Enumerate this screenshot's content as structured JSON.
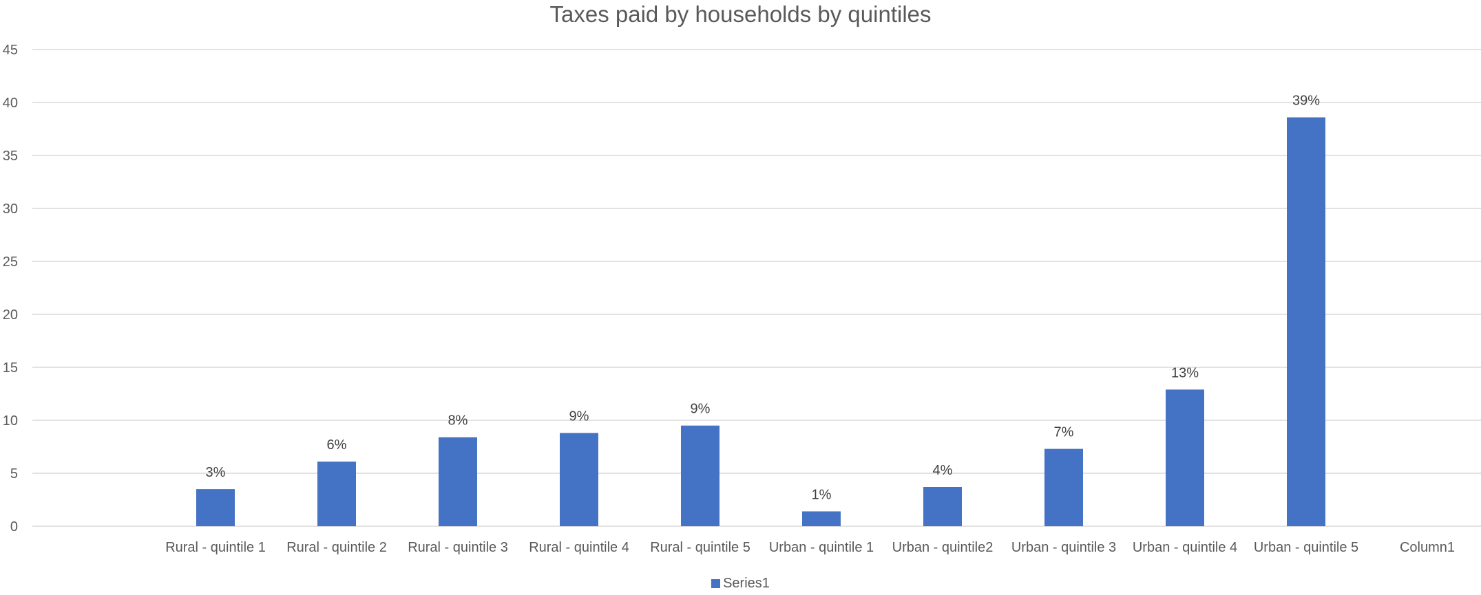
{
  "chart_data": {
    "type": "bar",
    "title": "Taxes paid by households by quintiles",
    "categories": [
      "Rural - quintile 1",
      "Rural - quintile 2",
      "Rural - quintile 3",
      "Rural - quintile 4",
      "Rural - quintile 5",
      "Urban - quintile 1",
      "Urban - quintile2",
      "Urban - quintile 3",
      "Urban - quintile 4",
      "Urban - quintile 5",
      "Column1"
    ],
    "series": [
      {
        "name": "Series1",
        "color": "#4472c4",
        "values": [
          3.5,
          6.1,
          8.4,
          8.8,
          9.5,
          1.4,
          3.7,
          7.3,
          12.9,
          38.6,
          null
        ],
        "labels": [
          "3%",
          "6%",
          "8%",
          "9%",
          "9%",
          "1%",
          "4%",
          "7%",
          "13%",
          "39%",
          ""
        ]
      }
    ],
    "ylim": [
      0,
      45
    ],
    "yticks": [
      0,
      5,
      10,
      15,
      20,
      25,
      30,
      35,
      40,
      45
    ],
    "grid": true,
    "legend_position": "bottom"
  }
}
